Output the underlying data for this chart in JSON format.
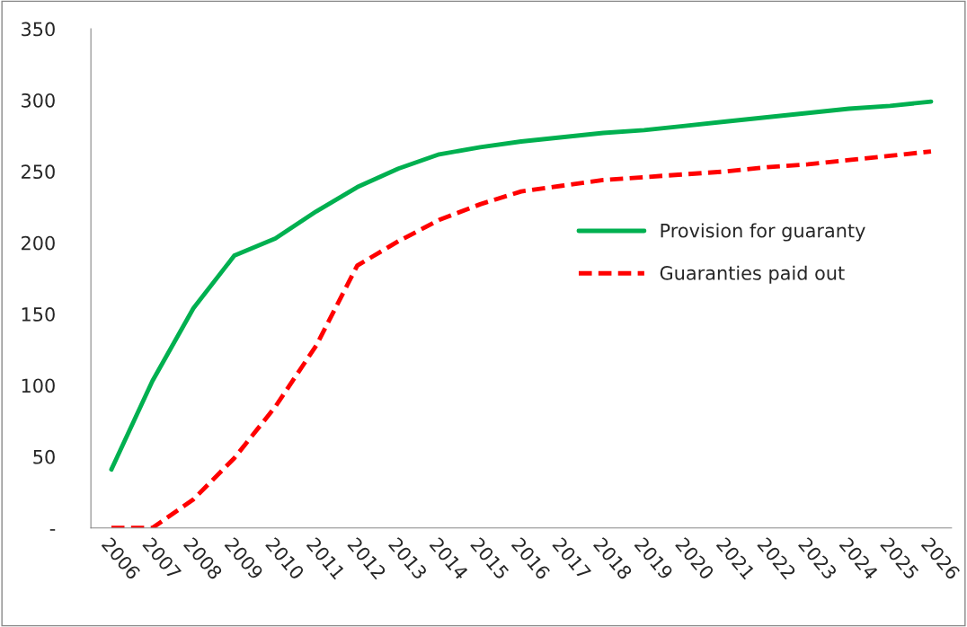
{
  "chart_data": {
    "type": "line",
    "categories": [
      "2006",
      "2007",
      "2008",
      "2009",
      "2010",
      "2011",
      "2012",
      "2013",
      "2014",
      "2015",
      "2016",
      "2017",
      "2018",
      "2019",
      "2020",
      "2021",
      "2022",
      "2023",
      "2024",
      "2025",
      "2026"
    ],
    "series": [
      {
        "name": "Provision for guaranty",
        "color": "#00b050",
        "line_style": "solid",
        "values": [
          41,
          103,
          154,
          191,
          203,
          222,
          239,
          252,
          262,
          267,
          271,
          274,
          277,
          279,
          282,
          285,
          288,
          291,
          294,
          296,
          299
        ]
      },
      {
        "name": "Guaranties paid out",
        "color": "#ff0000",
        "line_style": "dashed",
        "values": [
          0,
          0,
          20,
          49,
          85,
          128,
          184,
          201,
          216,
          227,
          236,
          240,
          244,
          246,
          248,
          250,
          253,
          255,
          258,
          261,
          264
        ]
      }
    ],
    "ylim": [
      0,
      350
    ],
    "yticks": [
      {
        "value": 0,
        "label": "-"
      },
      50,
      100,
      150,
      200,
      250,
      300,
      350
    ],
    "grid": false,
    "legend": "right",
    "marker": "none"
  }
}
